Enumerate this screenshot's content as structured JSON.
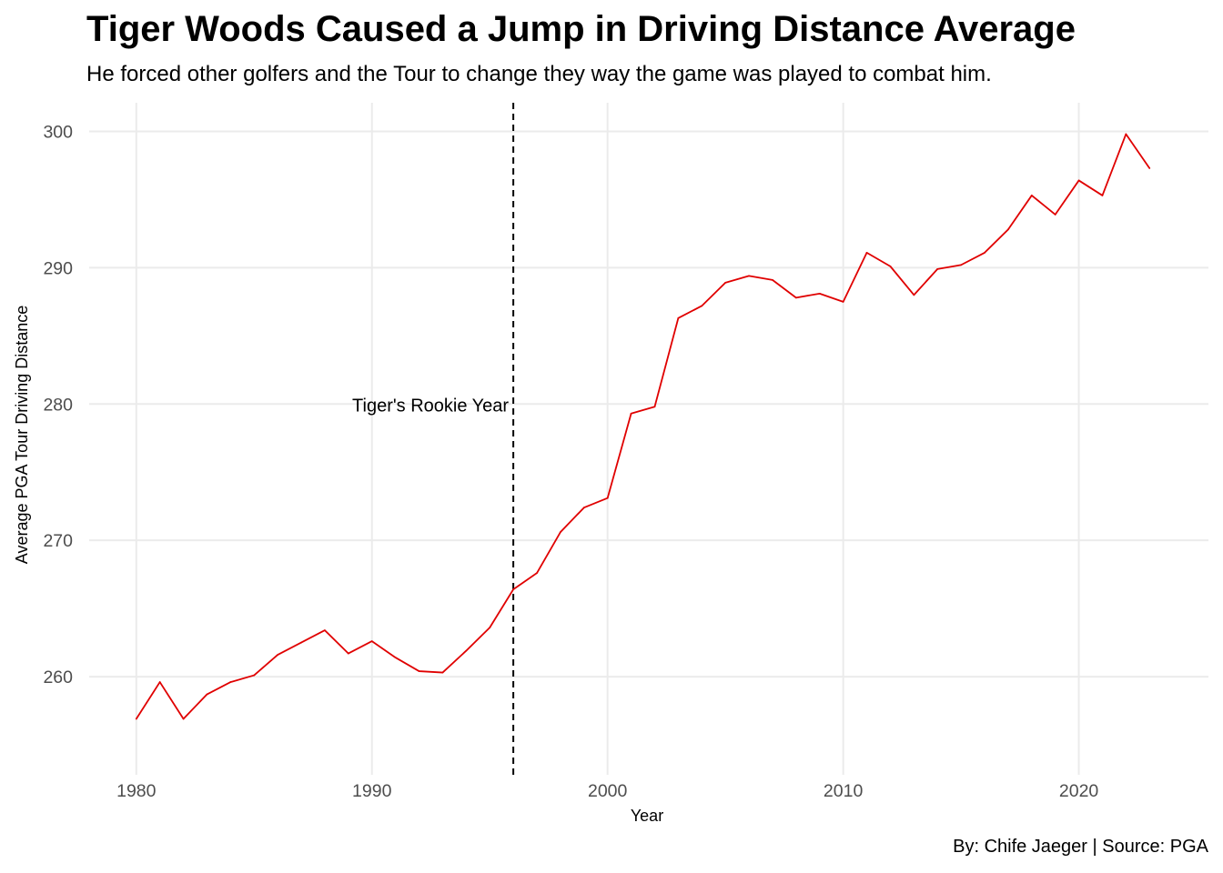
{
  "chart_data": {
    "type": "line",
    "title": "Tiger Woods Caused a Jump in Driving Distance Average",
    "subtitle": "He forced other golfers and the Tour to change they way the game was played to combat him.",
    "caption": "By: Chife Jaeger | Source: PGA",
    "xlabel": "Year",
    "ylabel": "Average PGA Tour Driving Distance",
    "xlim": [
      1978,
      2025.5
    ],
    "ylim": [
      252.8,
      302.1
    ],
    "x_ticks": [
      1980,
      1990,
      2000,
      2010,
      2020
    ],
    "y_ticks": [
      260,
      270,
      280,
      290,
      300
    ],
    "grid": true,
    "legend": "none",
    "line_color": "#e00000",
    "series": [
      {
        "x": [
          1980,
          1981,
          1982,
          1983,
          1984,
          1985,
          1986,
          1987,
          1988,
          1989,
          1990,
          1991,
          1992,
          1993,
          1994,
          1995,
          1996,
          1997,
          1998,
          1999,
          2000,
          2001,
          2002,
          2003,
          2004,
          2005,
          2006,
          2007,
          2008,
          2009,
          2010,
          2011,
          2012,
          2013,
          2014,
          2015,
          2016,
          2017,
          2018,
          2019,
          2020,
          2021,
          2022,
          2023
        ],
        "values": [
          256.9,
          259.6,
          256.9,
          258.7,
          259.6,
          260.1,
          261.6,
          262.5,
          263.4,
          261.7,
          262.6,
          261.4,
          260.4,
          260.3,
          261.9,
          263.6,
          266.4,
          267.6,
          270.6,
          272.4,
          273.1,
          279.3,
          279.8,
          286.3,
          287.2,
          288.9,
          289.4,
          289.1,
          287.8,
          288.1,
          287.5,
          291.1,
          290.1,
          288.0,
          289.9,
          290.2,
          291.1,
          292.8,
          295.3,
          293.9,
          296.4,
          295.3,
          299.8,
          297.3
        ]
      }
    ],
    "annotations": [
      {
        "x": 1996,
        "label": "Tiger's Rookie Year",
        "y": 280,
        "line_style": "dashed"
      }
    ]
  }
}
